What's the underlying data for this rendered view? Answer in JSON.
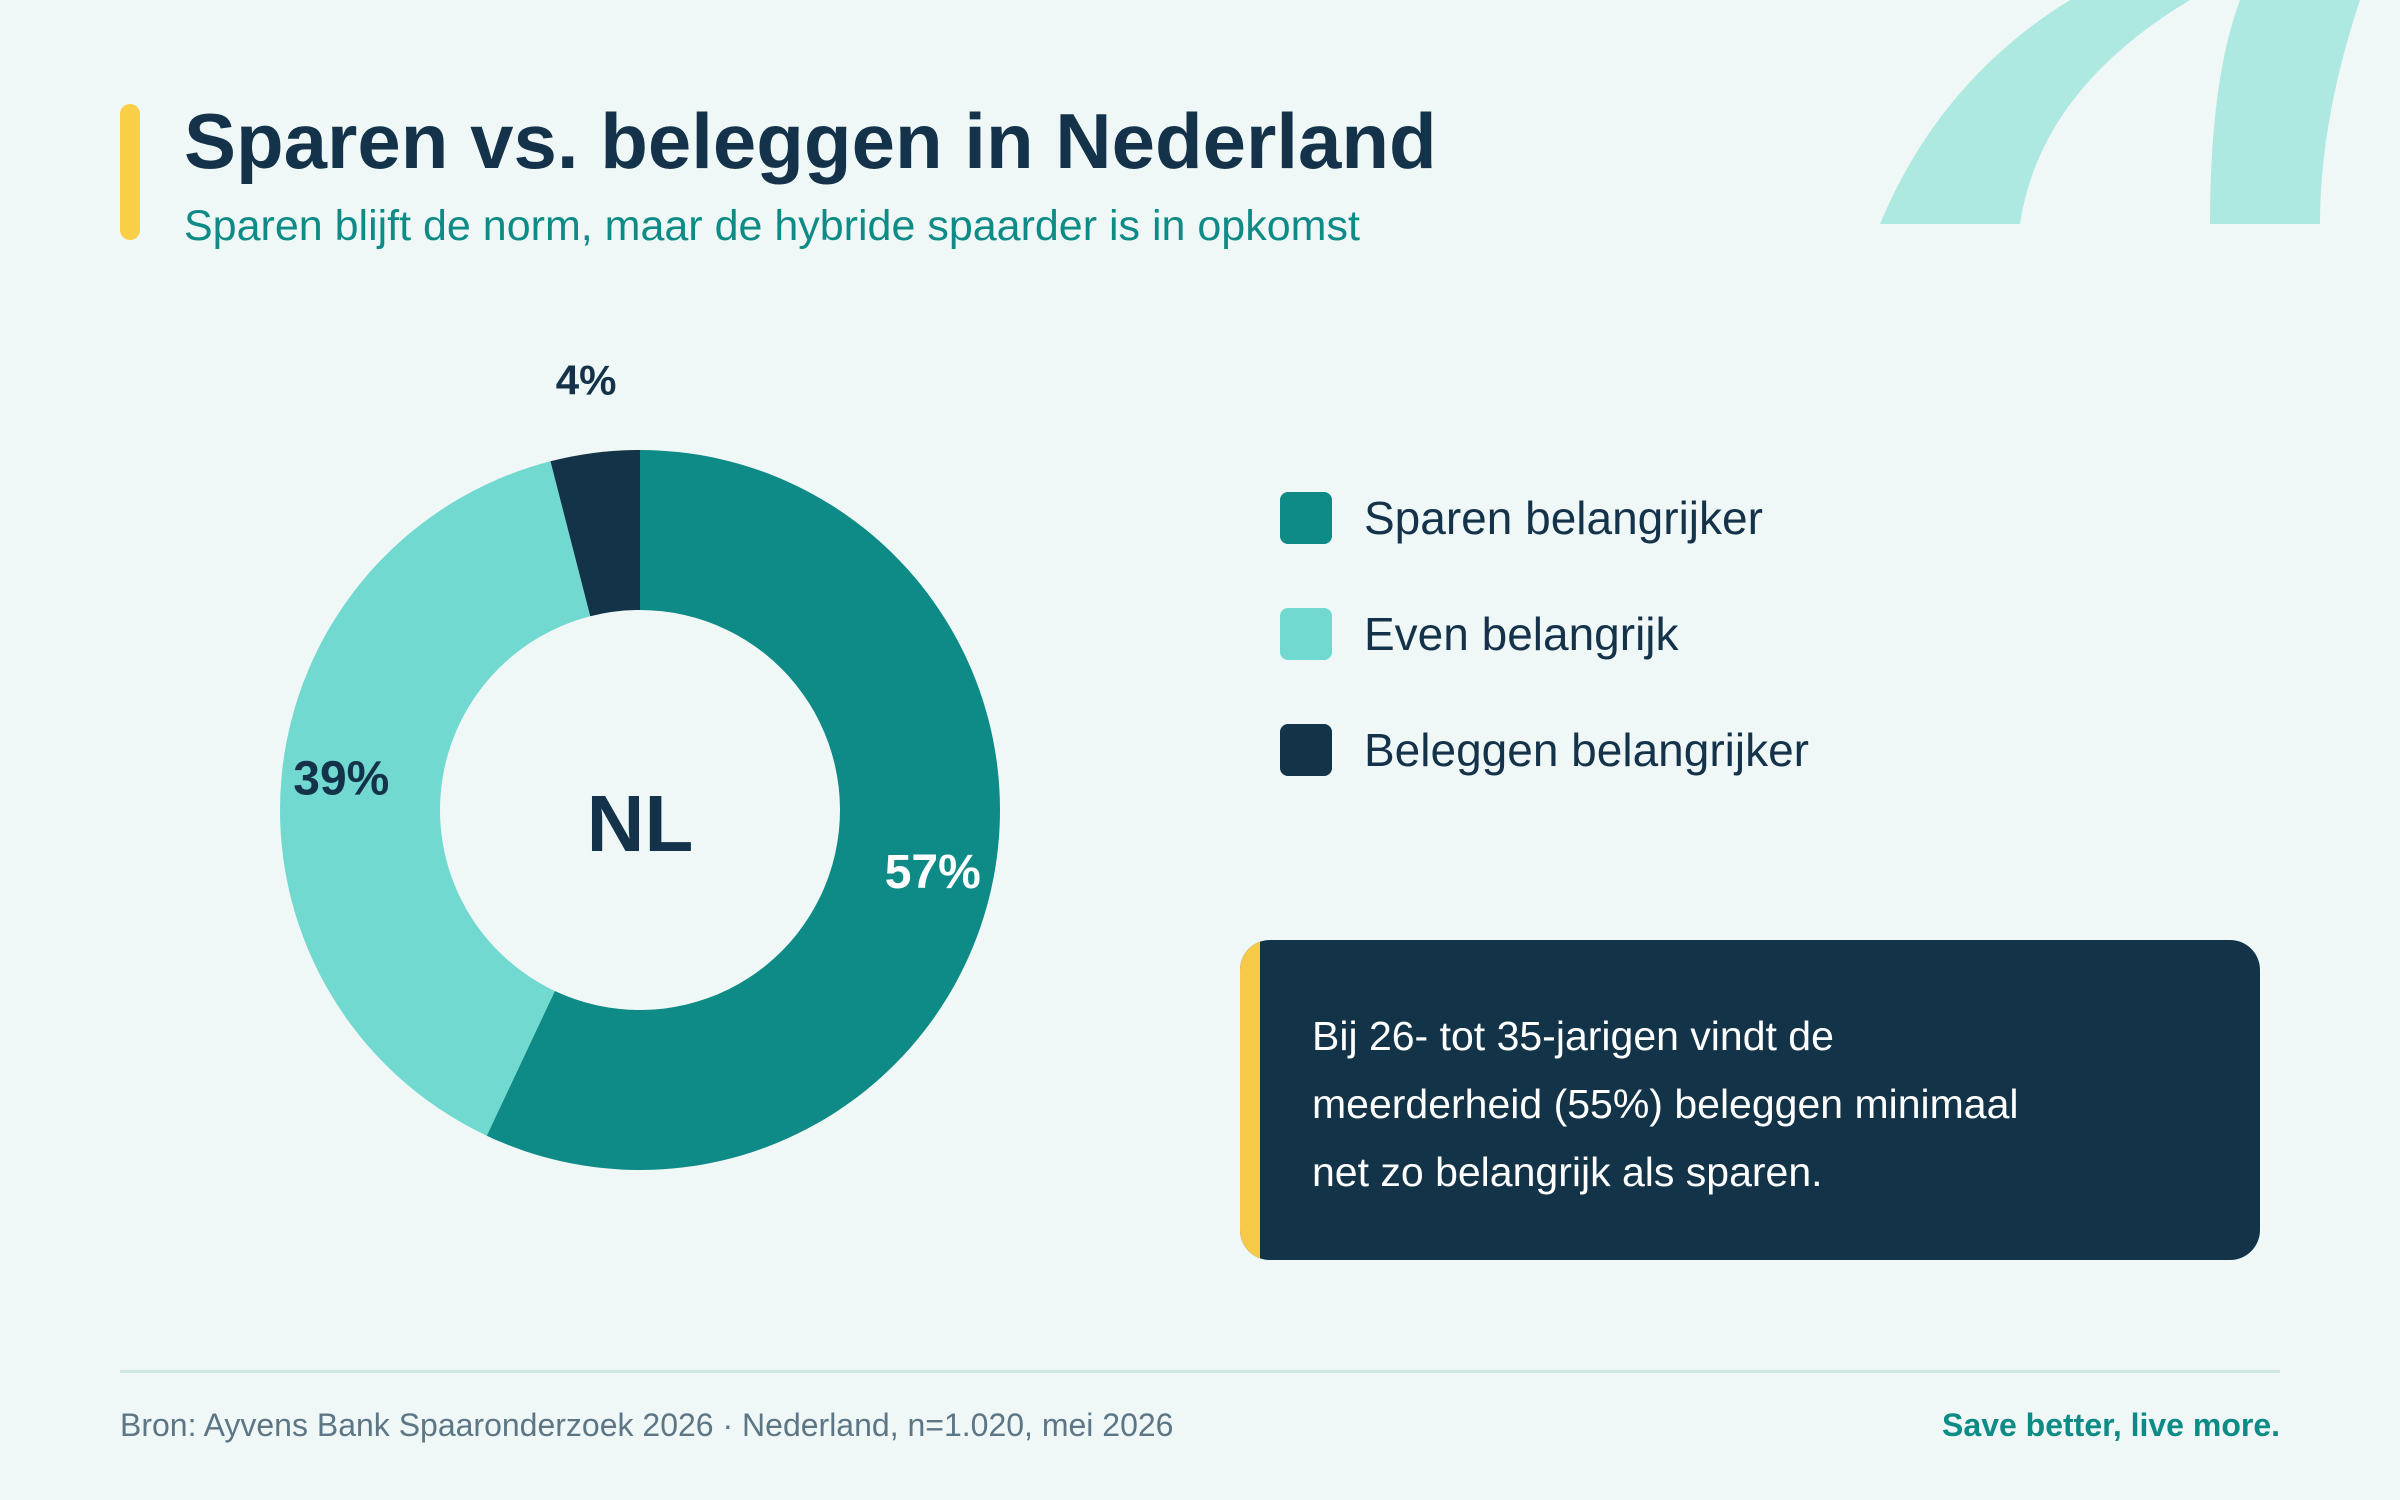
{
  "header": {
    "title": "Sparen vs. beleggen in Nederland",
    "subtitle": "Sparen blijft de norm, maar de hybride spaarder is in opkomst"
  },
  "chart_data": {
    "type": "pie",
    "variant": "donut",
    "center_label": "NL",
    "categories": [
      "Sparen belangrijker",
      "Even belangrijk",
      "Beleggen belangrijker"
    ],
    "values": [
      57,
      39,
      4
    ],
    "value_labels": [
      "57%",
      "39%",
      "4%"
    ],
    "colors": [
      "#0e8b86",
      "#71d9cf",
      "#133448"
    ],
    "label_colors": [
      "#ffffff",
      "#14334a",
      "#14334a"
    ],
    "legend_position": "right"
  },
  "callout": {
    "lines": [
      "Bij 26- tot 35-jarigen vindt de",
      "meerderheid (55%) beleggen minimaal",
      "net zo belangrijk als sparen."
    ]
  },
  "footer": {
    "source": "Bron: Ayvens Bank Spaaronderzoek 2026 · Nederland, n=1.020, mei 2026",
    "tagline": "Save better, live more."
  },
  "colors": {
    "background": "#eff8f6",
    "accent_yellow": "#f9cf48",
    "brand_teal": "#0e8b86",
    "light_teal": "#71d9cf",
    "navy": "#133448",
    "decoration": "#aee9e1"
  }
}
